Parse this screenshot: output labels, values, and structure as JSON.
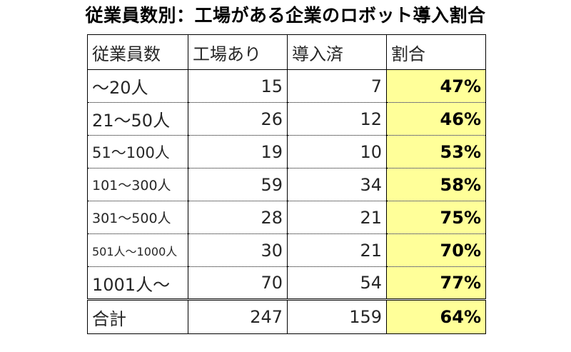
{
  "chart_data": {
    "type": "table",
    "title": "従業員数別：工場がある企業のロボット導入割合",
    "columns": [
      "従業員数",
      "工場あり",
      "導入済",
      "割合"
    ],
    "rows": [
      {
        "label": "～20人",
        "factory": "15",
        "adopted": "7",
        "ratio": "47%"
      },
      {
        "label": "21～50人",
        "factory": "26",
        "adopted": "12",
        "ratio": "46%"
      },
      {
        "label": "51～100人",
        "factory": "19",
        "adopted": "10",
        "ratio": "53%"
      },
      {
        "label": "101～300人",
        "factory": "59",
        "adopted": "34",
        "ratio": "58%"
      },
      {
        "label": "301～500人",
        "factory": "28",
        "adopted": "21",
        "ratio": "75%"
      },
      {
        "label": "501人～1000人",
        "factory": "30",
        "adopted": "21",
        "ratio": "70%"
      },
      {
        "label": "1001人～",
        "factory": "70",
        "adopted": "54",
        "ratio": "77%"
      }
    ],
    "total": {
      "label": "合計",
      "factory": "247",
      "adopted": "159",
      "ratio": "64%"
    },
    "highlight_color": "#ffff99"
  }
}
